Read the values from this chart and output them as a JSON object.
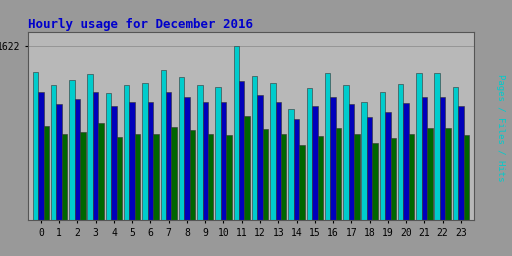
{
  "title": "Hourly usage for December 2016",
  "title_color": "#0000cc",
  "hours": [
    0,
    1,
    2,
    3,
    4,
    5,
    6,
    7,
    8,
    9,
    10,
    11,
    12,
    13,
    14,
    15,
    16,
    17,
    18,
    19,
    20,
    21,
    22,
    23
  ],
  "ytick_label": "1622",
  "background_plot": "#b8b8b8",
  "background_outer": "#999999",
  "hits": [
    1380,
    1260,
    1300,
    1360,
    1180,
    1260,
    1280,
    1400,
    1330,
    1260,
    1240,
    1622,
    1340,
    1280,
    1030,
    1230,
    1370,
    1260,
    1100,
    1190,
    1270,
    1370,
    1370,
    1240
  ],
  "files": [
    1190,
    1080,
    1130,
    1190,
    1060,
    1100,
    1100,
    1190,
    1150,
    1100,
    1100,
    1290,
    1160,
    1100,
    940,
    1060,
    1150,
    1080,
    960,
    1010,
    1090,
    1150,
    1150,
    1060
  ],
  "pages": [
    880,
    800,
    820,
    900,
    770,
    800,
    800,
    870,
    840,
    800,
    790,
    970,
    850,
    800,
    700,
    780,
    860,
    800,
    720,
    760,
    800,
    860,
    860,
    790
  ],
  "pages_color": "#006600",
  "files_color": "#0000bb",
  "hits_color": "#00cccc",
  "bar_edge_color": "#333333",
  "ylim_max": 1750,
  "bar_width": 0.3,
  "figsize": [
    5.12,
    2.56
  ],
  "dpi": 100
}
